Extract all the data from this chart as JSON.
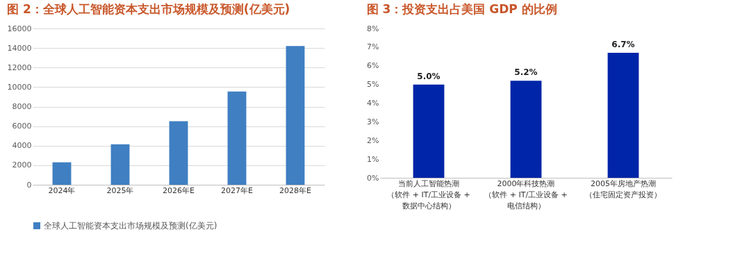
{
  "chart_data": [
    {
      "type": "bar",
      "title": "图 2：全球人工智能资本支出市场规模及预测(亿美元)",
      "categories": [
        "2024年",
        "2025年",
        "2026年E",
        "2027年E",
        "2028年E"
      ],
      "series": [
        {
          "name": "全球人工智能资本支出市场规模及预测(亿美元)",
          "color": "#3f7fc2",
          "values": [
            2300,
            4150,
            6500,
            9550,
            14200
          ]
        }
      ],
      "ylim": [
        0,
        16000
      ],
      "yticks": [
        0,
        2000,
        4000,
        6000,
        8000,
        10000,
        12000,
        14000,
        16000
      ],
      "grid": "y",
      "legend": "bottom"
    },
    {
      "type": "bar",
      "title": "图 3：投资支出占美国 GDP 的比例",
      "categories": [
        "当前人工智能热潮（软件 + IT/工业设备 +数据中心结构）",
        "2000年科技热潮（软件 + IT/工业设备 +电信结构）",
        "2005年房地产热潮（住宅固定资产投资）"
      ],
      "series": [
        {
          "color": "#0025a8",
          "values": [
            5.0,
            5.2,
            6.7
          ],
          "value_labels": [
            "5.0%",
            "5.2%",
            "6.7%"
          ]
        }
      ],
      "ylim": [
        0,
        8
      ],
      "yticks": [
        {
          "value": 0,
          "label": "0%"
        },
        {
          "value": 1,
          "label": "1%"
        },
        {
          "value": 2,
          "label": "2%"
        },
        {
          "value": 3,
          "label": "3%"
        },
        {
          "value": 4,
          "label": "4%"
        },
        {
          "value": 5,
          "label": "5%"
        },
        {
          "value": 6,
          "label": "6%"
        },
        {
          "value": 7,
          "label": "7%"
        },
        {
          "value": 8,
          "label": "8%"
        }
      ],
      "grid": false
    }
  ]
}
